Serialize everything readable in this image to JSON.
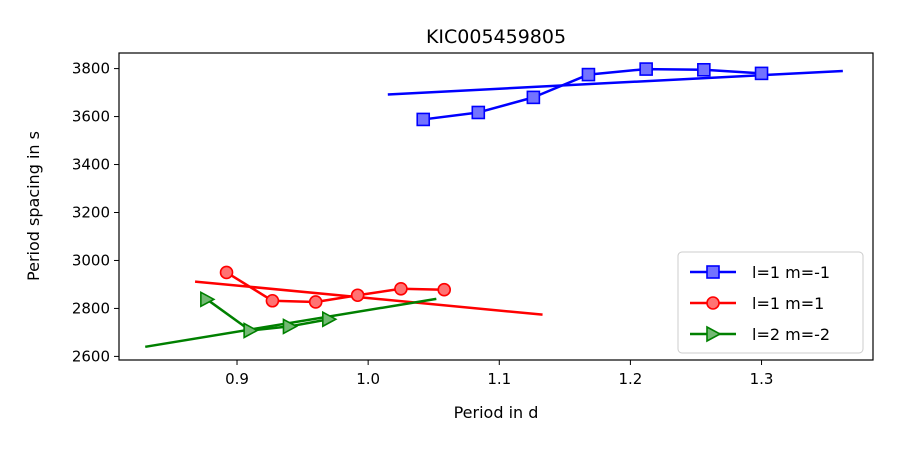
{
  "chart_data": {
    "type": "line",
    "title": "KIC005459805",
    "xlabel": "Period in d",
    "ylabel": "Period spacing in s",
    "xlim": [
      0.81,
      1.385
    ],
    "ylim": [
      2585,
      3865
    ],
    "xticks": [
      0.9,
      1.0,
      1.1,
      1.2,
      1.3
    ],
    "xtick_labels": [
      "0.9",
      "1.0",
      "1.1",
      "1.2",
      "1.3"
    ],
    "yticks": [
      2600,
      2800,
      3000,
      3200,
      3400,
      3600,
      3800
    ],
    "ytick_labels": [
      "2600",
      "2800",
      "3000",
      "3200",
      "3400",
      "3600",
      "3800"
    ],
    "legend_position": "lower-right",
    "series": [
      {
        "name": "l=1 m=-1",
        "color": "#0000ff",
        "marker": "square",
        "x": [
          1.042,
          1.084,
          1.126,
          1.168,
          1.212,
          1.256,
          1.3
        ],
        "y": [
          3588,
          3617,
          3680,
          3775,
          3798,
          3795,
          3780
        ],
        "fit": {
          "x": [
            1.015,
            1.362
          ],
          "y": [
            3692,
            3790
          ]
        }
      },
      {
        "name": "l=1 m=1",
        "color": "#ff0000",
        "marker": "circle",
        "x": [
          0.892,
          0.927,
          0.96,
          0.992,
          1.025,
          1.058
        ],
        "y": [
          2950,
          2832,
          2827,
          2855,
          2882,
          2878
        ],
        "fit": {
          "x": [
            0.868,
            1.133
          ],
          "y": [
            2912,
            2774
          ]
        }
      },
      {
        "name": "l=2 m=-2",
        "color": "#008000",
        "marker": "triangle-right",
        "x": [
          0.877,
          0.91,
          0.94,
          0.97
        ],
        "y": [
          2838,
          2708,
          2725,
          2755
        ],
        "fit": {
          "x": [
            0.83,
            1.052
          ],
          "y": [
            2640,
            2840
          ]
        }
      }
    ]
  }
}
